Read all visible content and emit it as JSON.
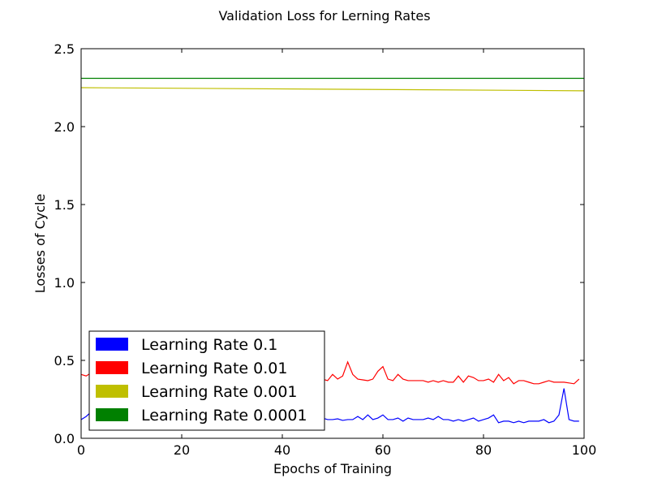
{
  "chart_data": {
    "type": "line",
    "title": "Validation Loss for Lerning Rates",
    "xlabel": "Epochs of Training",
    "ylabel": "Losses of Cycle",
    "xlim": [
      0,
      100
    ],
    "ylim": [
      0,
      2.5
    ],
    "xticks": [
      "0",
      "20",
      "40",
      "60",
      "80",
      "100"
    ],
    "yticks": [
      "0.0",
      "0.5",
      "1.0",
      "1.5",
      "2.0",
      "2.5"
    ],
    "grid": false,
    "legend_position": "lower-left",
    "series": [
      {
        "name": "Learning Rate 0.1",
        "color": "#0000ff",
        "x": [
          0,
          1,
          2,
          3,
          4,
          5,
          6,
          7,
          8,
          9,
          10,
          11,
          12,
          13,
          14,
          15,
          16,
          17,
          18,
          19,
          20,
          21,
          22,
          23,
          24,
          25,
          26,
          27,
          28,
          29,
          30,
          31,
          32,
          33,
          34,
          35,
          36,
          37,
          38,
          39,
          40,
          41,
          42,
          43,
          44,
          45,
          46,
          47,
          48,
          49,
          50,
          51,
          52,
          53,
          54,
          55,
          56,
          57,
          58,
          59,
          60,
          61,
          62,
          63,
          64,
          65,
          66,
          67,
          68,
          69,
          70,
          71,
          72,
          73,
          74,
          75,
          76,
          77,
          78,
          79,
          80,
          81,
          82,
          83,
          84,
          85,
          86,
          87,
          88,
          89,
          90,
          91,
          92,
          93,
          94,
          95,
          96,
          97,
          98,
          99
        ],
        "values": [
          0.12,
          0.14,
          0.17,
          0.16,
          0.15,
          0.16,
          0.15,
          0.14,
          0.15,
          0.14,
          0.15,
          0.14,
          0.13,
          0.14,
          0.15,
          0.13,
          0.14,
          0.13,
          0.14,
          0.13,
          0.13,
          0.14,
          0.13,
          0.12,
          0.13,
          0.14,
          0.13,
          0.12,
          0.13,
          0.12,
          0.13,
          0.12,
          0.13,
          0.12,
          0.13,
          0.12,
          0.13,
          0.12,
          0.13,
          0.12,
          0.13,
          0.12,
          0.13,
          0.12,
          0.13,
          0.12,
          0.13,
          0.12,
          0.13,
          0.12,
          0.12,
          0.125,
          0.115,
          0.12,
          0.12,
          0.14,
          0.12,
          0.15,
          0.12,
          0.13,
          0.15,
          0.12,
          0.12,
          0.13,
          0.11,
          0.13,
          0.12,
          0.12,
          0.12,
          0.13,
          0.12,
          0.14,
          0.12,
          0.12,
          0.11,
          0.12,
          0.11,
          0.12,
          0.13,
          0.11,
          0.12,
          0.13,
          0.15,
          0.1,
          0.11,
          0.11,
          0.1,
          0.11,
          0.1,
          0.11,
          0.11,
          0.11,
          0.12,
          0.1,
          0.11,
          0.15,
          0.32,
          0.12,
          0.11,
          0.11
        ]
      },
      {
        "name": "Learning Rate 0.01",
        "color": "#ff0000",
        "x": [
          0,
          1,
          2,
          3,
          4,
          5,
          6,
          7,
          8,
          9,
          10,
          11,
          12,
          13,
          14,
          15,
          16,
          17,
          18,
          19,
          20,
          21,
          22,
          23,
          24,
          25,
          26,
          27,
          28,
          29,
          30,
          31,
          32,
          33,
          34,
          35,
          36,
          37,
          38,
          39,
          40,
          41,
          42,
          43,
          44,
          45,
          46,
          47,
          48,
          49,
          50,
          51,
          52,
          53,
          54,
          55,
          56,
          57,
          58,
          59,
          60,
          61,
          62,
          63,
          64,
          65,
          66,
          67,
          68,
          69,
          70,
          71,
          72,
          73,
          74,
          75,
          76,
          77,
          78,
          79,
          80,
          81,
          82,
          83,
          84,
          85,
          86,
          87,
          88,
          89,
          90,
          91,
          92,
          93,
          94,
          95,
          96,
          97,
          98,
          99
        ],
        "values": [
          0.41,
          0.4,
          0.42,
          0.41,
          0.4,
          0.41,
          0.42,
          0.4,
          0.41,
          0.4,
          0.41,
          0.4,
          0.41,
          0.39,
          0.4,
          0.41,
          0.39,
          0.4,
          0.41,
          0.39,
          0.4,
          0.41,
          0.39,
          0.4,
          0.41,
          0.39,
          0.4,
          0.38,
          0.39,
          0.4,
          0.39,
          0.38,
          0.4,
          0.39,
          0.38,
          0.39,
          0.4,
          0.38,
          0.39,
          0.38,
          0.39,
          0.38,
          0.37,
          0.39,
          0.38,
          0.37,
          0.38,
          0.37,
          0.38,
          0.37,
          0.41,
          0.38,
          0.4,
          0.49,
          0.41,
          0.38,
          0.375,
          0.37,
          0.38,
          0.43,
          0.46,
          0.38,
          0.37,
          0.41,
          0.38,
          0.37,
          0.37,
          0.37,
          0.37,
          0.36,
          0.37,
          0.36,
          0.37,
          0.36,
          0.36,
          0.4,
          0.36,
          0.4,
          0.39,
          0.37,
          0.37,
          0.38,
          0.36,
          0.41,
          0.37,
          0.39,
          0.35,
          0.37,
          0.37,
          0.36,
          0.35,
          0.35,
          0.36,
          0.37,
          0.36,
          0.36,
          0.36,
          0.355,
          0.35,
          0.38
        ]
      },
      {
        "name": "Learning Rate 0.001",
        "color": "#bfbf00",
        "x": [
          0,
          100
        ],
        "values": [
          2.25,
          2.23
        ]
      },
      {
        "name": "Learning Rate 0.0001",
        "color": "#008000",
        "x": [
          0,
          100
        ],
        "values": [
          2.31,
          2.31
        ]
      }
    ]
  }
}
